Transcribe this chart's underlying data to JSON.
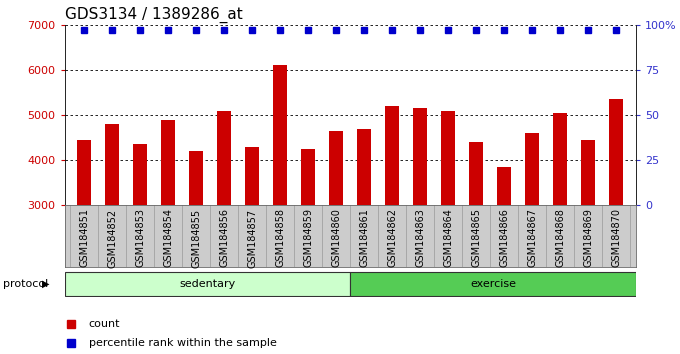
{
  "title": "GDS3134 / 1389286_at",
  "categories": [
    "GSM184851",
    "GSM184852",
    "GSM184853",
    "GSM184854",
    "GSM184855",
    "GSM184856",
    "GSM184857",
    "GSM184858",
    "GSM184859",
    "GSM184860",
    "GSM184861",
    "GSM184862",
    "GSM184863",
    "GSM184864",
    "GSM184865",
    "GSM184866",
    "GSM184867",
    "GSM184868",
    "GSM184869",
    "GSM184870"
  ],
  "bar_values": [
    4450,
    4800,
    4350,
    4900,
    4200,
    5100,
    4300,
    6100,
    4250,
    4650,
    4700,
    5200,
    5150,
    5100,
    4400,
    3850,
    4600,
    5050,
    4450,
    5350
  ],
  "percentile_values": [
    97,
    97,
    97,
    97,
    97,
    97,
    97,
    97,
    97,
    97,
    97,
    97,
    97,
    97,
    97,
    97,
    97,
    97,
    97,
    97
  ],
  "n_sedentary": 10,
  "n_exercise": 10,
  "bar_color": "#CC0000",
  "percentile_color": "#0000CC",
  "ylim_left": [
    3000,
    7000
  ],
  "ylim_right": [
    0,
    100
  ],
  "yticks_left": [
    3000,
    4000,
    5000,
    6000,
    7000
  ],
  "yticks_right": [
    0,
    25,
    50,
    75,
    100
  ],
  "ytick_labels_right": [
    "0",
    "25",
    "50",
    "75",
    "100%"
  ],
  "group_label_sedentary": "sedentary",
  "group_label_exercise": "exercise",
  "group_color_sedentary": "#ccffcc",
  "group_color_exercise": "#55cc55",
  "protocol_label": "protocol",
  "legend_count_label": "count",
  "legend_percentile_label": "percentile rank within the sample",
  "title_fontsize": 11,
  "bar_tick_fontsize": 7,
  "ytick_fontsize": 8,
  "axis_left_color": "#CC0000",
  "axis_right_color": "#3333CC",
  "xtick_bg_color": "#cccccc",
  "xtick_border_color": "#999999"
}
